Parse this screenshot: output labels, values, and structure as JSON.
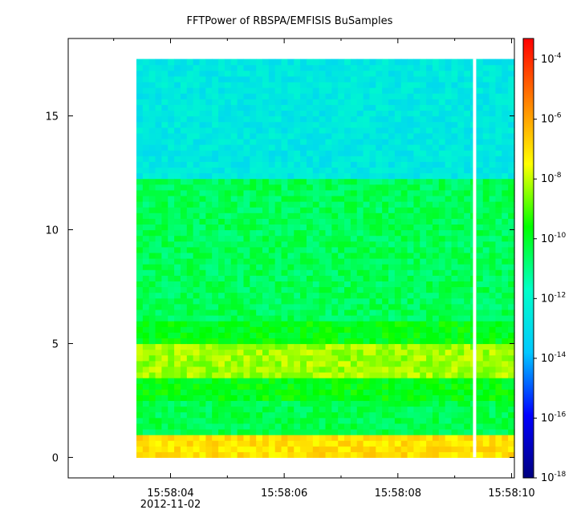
{
  "chart_data": {
    "type": "heatmap",
    "title": "FFTPower of RBSPA/EMFISIS  BuSamples",
    "xlabel": "",
    "ylabel": "",
    "x_ticks": [
      {
        "label": "15:58:04",
        "sublabel": "2012-11-02",
        "t": 4
      },
      {
        "label": "15:58:06",
        "sublabel": "",
        "t": 6
      },
      {
        "label": "15:58:08",
        "sublabel": "",
        "t": 8
      },
      {
        "label": "15:58:10",
        "sublabel": "",
        "t": 10
      }
    ],
    "x_minor_ticks": [
      3,
      5,
      7,
      9
    ],
    "xlim": [
      2.2,
      10.05
    ],
    "y_ticks": [
      0,
      5,
      10,
      15
    ],
    "ylim": [
      -0.9,
      18.4
    ],
    "data_extent": {
      "t_start": 3.4,
      "t_end": 10.05,
      "f_min": 0.0,
      "f_max": 17.5
    },
    "gap_t": 9.35,
    "colorbar": {
      "scale": "log",
      "min_exp": -18,
      "max_exp": -3.3,
      "ticks": [
        {
          "base": "10",
          "exp": "-4",
          "v": -4
        },
        {
          "base": "10",
          "exp": "-6",
          "v": -6
        },
        {
          "base": "10",
          "exp": "-8",
          "v": -8
        },
        {
          "base": "10",
          "exp": "-10",
          "v": -10
        },
        {
          "base": "10",
          "exp": "-12",
          "v": -12
        },
        {
          "base": "10",
          "exp": "-14",
          "v": -14
        },
        {
          "base": "10",
          "exp": "-16",
          "v": -16
        },
        {
          "base": "10",
          "exp": "-18",
          "v": -18
        }
      ],
      "colors": [
        "#000080",
        "#0000ff",
        "#00c8ff",
        "#00ffc8",
        "#00ff00",
        "#ffff00",
        "#ff8000",
        "#ff0000"
      ]
    },
    "bands": [
      {
        "f_from": 12.3,
        "f_to": 17.5,
        "level": -12.6
      },
      {
        "f_from": 6.0,
        "f_to": 12.3,
        "level": -10.5
      },
      {
        "f_from": 5.1,
        "f_to": 6.0,
        "level": -9.8
      },
      {
        "f_from": 3.6,
        "f_to": 5.1,
        "level": -8.3
      },
      {
        "f_from": 2.5,
        "f_to": 3.6,
        "level": -9.8
      },
      {
        "f_from": 0.9,
        "f_to": 2.5,
        "level": -10.4
      },
      {
        "f_from": 0.0,
        "f_to": 0.9,
        "level": -7.0
      }
    ]
  }
}
